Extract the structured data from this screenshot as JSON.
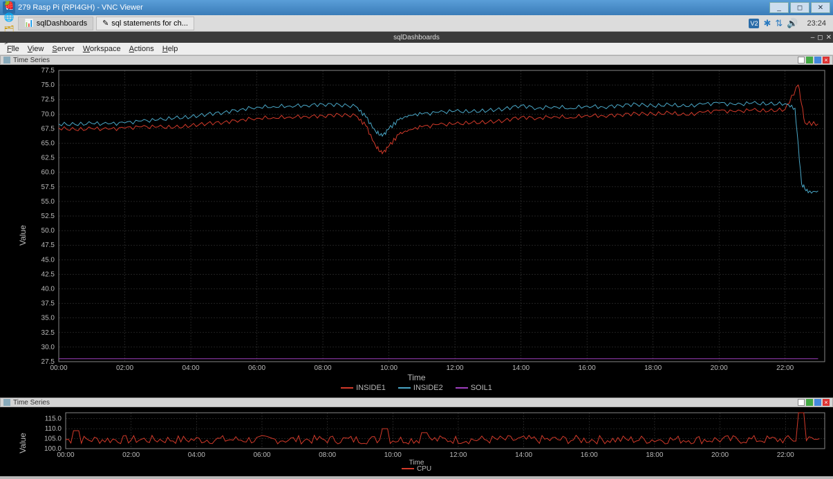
{
  "window": {
    "title": "279 Rasp Pi (RPI4GH) - VNC Viewer",
    "vnc_badge": "V2"
  },
  "win_controls": {
    "min": "_",
    "max": "◻",
    "close": "✕"
  },
  "pi_taskbar": {
    "icons": [
      {
        "name": "raspberry-icon",
        "glyph": "🍓",
        "color": "#c31"
      },
      {
        "name": "web-icon",
        "glyph": "🌐",
        "color": "#3a8"
      },
      {
        "name": "files-icon",
        "glyph": "🗂",
        "color": "#c90"
      },
      {
        "name": "terminal-icon",
        "glyph": ">_",
        "color": "#333"
      }
    ],
    "tasks": [
      {
        "name": "task-sqldashboards",
        "label": "sqlDashboards",
        "icon": "📊",
        "active": true
      },
      {
        "name": "task-sqlstatements",
        "label": "sql statements for ch...",
        "icon": "✎",
        "active": false
      }
    ],
    "tray": [
      {
        "name": "vnc-tray-icon",
        "glyph": "V2",
        "color": "#2a6ca8"
      },
      {
        "name": "bluetooth-icon",
        "glyph": "✱",
        "color": "#2a7ac0"
      },
      {
        "name": "network-icon",
        "glyph": "⇅",
        "color": "#2a7ac0"
      },
      {
        "name": "volume-icon",
        "glyph": "🔊",
        "color": "#2a7ac0"
      }
    ],
    "clock": "23:24"
  },
  "app": {
    "title": "sqlDashboards",
    "menu": [
      "File",
      "View",
      "Server",
      "Workspace",
      "Actions",
      "Help"
    ]
  },
  "panel1": {
    "title": "Time Series",
    "ylabel": "Value",
    "xlabel": "Time",
    "background": "#000000",
    "grid_color": "#444444",
    "text_color": "#bbbbbb",
    "ylim": [
      27.5,
      77.5
    ],
    "ytick_step": 2.5,
    "xticks": [
      "00:00",
      "02:00",
      "04:00",
      "06:00",
      "08:00",
      "10:00",
      "12:00",
      "14:00",
      "16:00",
      "18:00",
      "20:00",
      "22:00"
    ],
    "legend": [
      {
        "name": "INSIDE1",
        "color": "#d43a2a"
      },
      {
        "name": "INSIDE2",
        "color": "#4aa8c8"
      },
      {
        "name": "SOIL1",
        "color": "#a040c0"
      }
    ],
    "series": {
      "INSIDE1": {
        "color": "#d43a2a",
        "data": [
          [
            0,
            67.6
          ],
          [
            0.5,
            67.3
          ],
          [
            1,
            67.5
          ],
          [
            1.5,
            67.4
          ],
          [
            2,
            67.6
          ],
          [
            2.5,
            67.8
          ],
          [
            3,
            67.8
          ],
          [
            3.5,
            67.7
          ],
          [
            4,
            68.0
          ],
          [
            4.5,
            68.4
          ],
          [
            5,
            68.6
          ],
          [
            5.5,
            69.0
          ],
          [
            6,
            69.3
          ],
          [
            6.5,
            69.4
          ],
          [
            7,
            69.5
          ],
          [
            7.5,
            69.6
          ],
          [
            8,
            69.7
          ],
          [
            8.5,
            69.9
          ],
          [
            9,
            69.7
          ],
          [
            9.3,
            68.0
          ],
          [
            9.6,
            64.5
          ],
          [
            9.8,
            63.2
          ],
          [
            10,
            64.5
          ],
          [
            10.3,
            66.5
          ],
          [
            10.6,
            67.3
          ],
          [
            11,
            67.8
          ],
          [
            11.5,
            68.2
          ],
          [
            12,
            68.3
          ],
          [
            12.5,
            68.5
          ],
          [
            13,
            68.6
          ],
          [
            13.5,
            68.9
          ],
          [
            14,
            69.5
          ],
          [
            14.5,
            69.3
          ],
          [
            15,
            69.6
          ],
          [
            15.5,
            69.4
          ],
          [
            16,
            69.8
          ],
          [
            16.5,
            69.7
          ],
          [
            17,
            69.9
          ],
          [
            17.5,
            70.1
          ],
          [
            18,
            70.0
          ],
          [
            18.5,
            70.2
          ],
          [
            19,
            69.8
          ],
          [
            19.5,
            70.3
          ],
          [
            20,
            70.6
          ],
          [
            20.5,
            70.4
          ],
          [
            21,
            70.7
          ],
          [
            21.5,
            70.5
          ],
          [
            22,
            70.8
          ],
          [
            22.4,
            75.0
          ],
          [
            22.6,
            68.5
          ],
          [
            23,
            68.3
          ]
        ]
      },
      "INSIDE2": {
        "color": "#4aa8c8",
        "data": [
          [
            0,
            68.3
          ],
          [
            0.5,
            68.2
          ],
          [
            1,
            68.4
          ],
          [
            1.5,
            68.3
          ],
          [
            2,
            68.5
          ],
          [
            2.5,
            68.8
          ],
          [
            3,
            69.0
          ],
          [
            3.5,
            69.3
          ],
          [
            4,
            69.5
          ],
          [
            4.5,
            70.0
          ],
          [
            5,
            70.3
          ],
          [
            5.5,
            70.8
          ],
          [
            6,
            71.2
          ],
          [
            6.5,
            71.3
          ],
          [
            7,
            71.4
          ],
          [
            7.5,
            71.5
          ],
          [
            8,
            71.7
          ],
          [
            8.5,
            71.6
          ],
          [
            9,
            71.3
          ],
          [
            9.3,
            69.5
          ],
          [
            9.6,
            67.0
          ],
          [
            9.8,
            66.2
          ],
          [
            10,
            67.5
          ],
          [
            10.3,
            69.0
          ],
          [
            10.6,
            69.8
          ],
          [
            11,
            70.0
          ],
          [
            11.5,
            70.3
          ],
          [
            12,
            70.5
          ],
          [
            12.5,
            70.4
          ],
          [
            13,
            70.6
          ],
          [
            13.5,
            70.9
          ],
          [
            14,
            71.5
          ],
          [
            14.5,
            71.0
          ],
          [
            15,
            71.3
          ],
          [
            15.5,
            71.0
          ],
          [
            16,
            71.4
          ],
          [
            16.5,
            71.2
          ],
          [
            17,
            71.5
          ],
          [
            17.5,
            71.7
          ],
          [
            18,
            71.4
          ],
          [
            18.5,
            71.6
          ],
          [
            19,
            71.3
          ],
          [
            19.5,
            71.7
          ],
          [
            20,
            71.9
          ],
          [
            20.5,
            71.6
          ],
          [
            21,
            71.9
          ],
          [
            21.5,
            71.7
          ],
          [
            22,
            71.8
          ],
          [
            22.3,
            71.0
          ],
          [
            22.5,
            58.0
          ],
          [
            22.7,
            56.5
          ],
          [
            23,
            56.8
          ]
        ]
      },
      "SOIL1": {
        "color": "#a040c0",
        "data": [
          [
            0,
            28.0
          ],
          [
            23,
            28.0
          ]
        ]
      }
    }
  },
  "panel2": {
    "title": "Time Series",
    "ylabel": "Value",
    "xlabel": "Time",
    "background": "#000000",
    "grid_color": "#444444",
    "text_color": "#bbbbbb",
    "ylim": [
      100,
      118
    ],
    "yticks": [
      100,
      105,
      110,
      115
    ],
    "xticks": [
      "00:00",
      "02:00",
      "04:00",
      "06:00",
      "08:00",
      "10:00",
      "12:00",
      "14:00",
      "16:00",
      "18:00",
      "20:00",
      "22:00"
    ],
    "legend": [
      {
        "name": "CPU",
        "color": "#d43a2a"
      }
    ],
    "series": {
      "CPU": {
        "color": "#d43a2a",
        "base": 104.5,
        "noise": 2.2,
        "spikes": [
          [
            0.3,
            109
          ],
          [
            9.8,
            110
          ],
          [
            11,
            108
          ],
          [
            22.5,
            118
          ]
        ]
      }
    }
  }
}
